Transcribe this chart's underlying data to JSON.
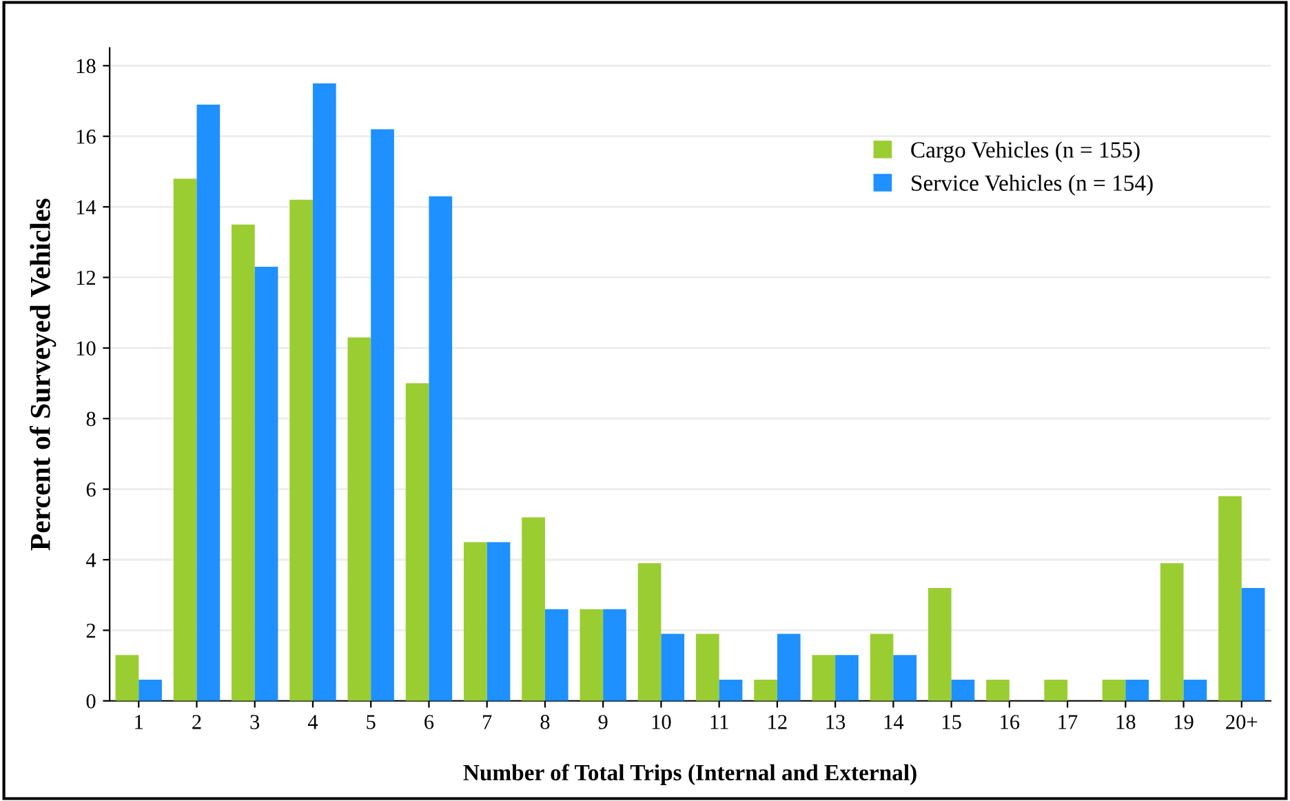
{
  "chart_data": {
    "type": "bar",
    "xlabel": "Number of Total Trips (Internal and External)",
    "ylabel": "Percent of Surveyed Vehicles",
    "categories": [
      "1",
      "2",
      "3",
      "4",
      "5",
      "6",
      "7",
      "8",
      "9",
      "10",
      "11",
      "12",
      "13",
      "14",
      "15",
      "16",
      "17",
      "18",
      "19",
      "20+"
    ],
    "series": [
      {
        "name": "Cargo Vehicles (n = 155)",
        "color": "#9acd32",
        "values": [
          1.3,
          14.8,
          13.5,
          14.2,
          10.3,
          9.0,
          4.5,
          5.2,
          2.6,
          3.9,
          1.9,
          0.6,
          1.3,
          1.9,
          3.2,
          0.6,
          0.6,
          0.6,
          3.9,
          5.8
        ]
      },
      {
        "name": "Service Vehicles (n = 154)",
        "color": "#1e90ff",
        "values": [
          0.6,
          16.9,
          12.3,
          17.5,
          16.2,
          14.3,
          4.5,
          2.6,
          2.6,
          1.9,
          0.6,
          1.9,
          1.3,
          1.3,
          0.6,
          0,
          0,
          0.6,
          0.6,
          3.2
        ]
      }
    ],
    "ylim": [
      0,
      18.5
    ],
    "yticks": [
      0,
      2,
      4,
      6,
      8,
      10,
      12,
      14,
      16,
      18
    ],
    "grid": "y",
    "legend": "top right"
  }
}
